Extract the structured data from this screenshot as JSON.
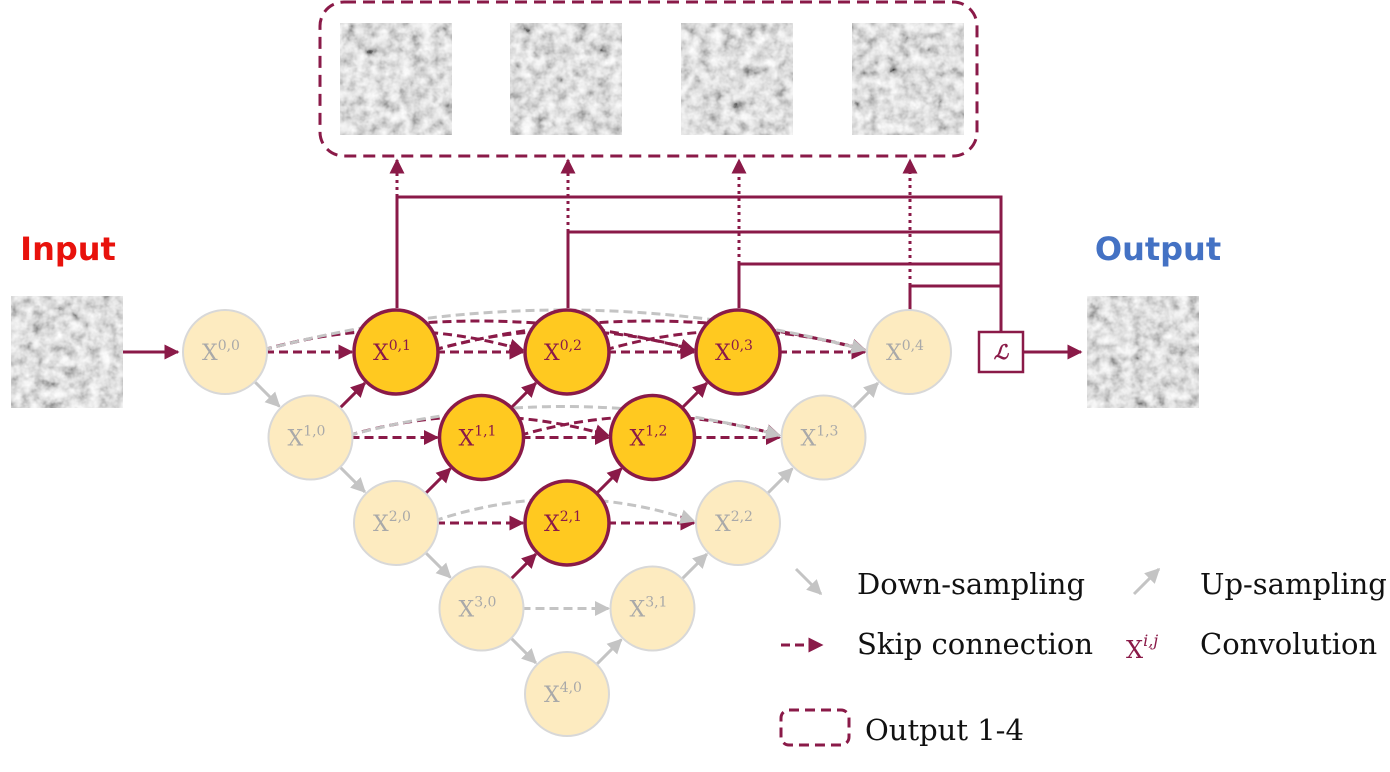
{
  "labels": {
    "input": "Input",
    "output": "Output",
    "loss_symbol": "ℒ"
  },
  "legend": {
    "down_sampling": "Down-sampling",
    "up_sampling": "Up-sampling",
    "skip_connection": "Skip connection",
    "convolution_symbol": "X",
    "convolution_sup": "i,j",
    "convolution": "Convolution",
    "outputs_box": "Output 1-4"
  },
  "nodes": [
    {
      "id": "0,0",
      "base": "X",
      "sup": "0,0",
      "active": false
    },
    {
      "id": "1,0",
      "base": "X",
      "sup": "1,0",
      "active": false
    },
    {
      "id": "2,0",
      "base": "X",
      "sup": "2,0",
      "active": false
    },
    {
      "id": "3,0",
      "base": "X",
      "sup": "3,0",
      "active": false
    },
    {
      "id": "4,0",
      "base": "X",
      "sup": "4,0",
      "active": false
    },
    {
      "id": "0,1",
      "base": "X",
      "sup": "0,1",
      "active": true
    },
    {
      "id": "1,1",
      "base": "X",
      "sup": "1,1",
      "active": true
    },
    {
      "id": "2,1",
      "base": "X",
      "sup": "2,1",
      "active": true
    },
    {
      "id": "3,1",
      "base": "X",
      "sup": "3,1",
      "active": false
    },
    {
      "id": "0,2",
      "base": "X",
      "sup": "0,2",
      "active": true
    },
    {
      "id": "1,2",
      "base": "X",
      "sup": "1,2",
      "active": true
    },
    {
      "id": "2,2",
      "base": "X",
      "sup": "2,2",
      "active": false
    },
    {
      "id": "0,3",
      "base": "X",
      "sup": "0,3",
      "active": true
    },
    {
      "id": "1,3",
      "base": "X",
      "sup": "1,3",
      "active": false
    },
    {
      "id": "0,4",
      "base": "X",
      "sup": "0,4",
      "active": false
    }
  ],
  "colors": {
    "accent": "#8a1a48",
    "active_fill": "#ffc920",
    "inactive_fill": "#fdebc0",
    "inactive_stroke": "#d8d8d8",
    "inactive_text": "#a9a9a9",
    "gray_arrow": "#c4c4c4"
  }
}
